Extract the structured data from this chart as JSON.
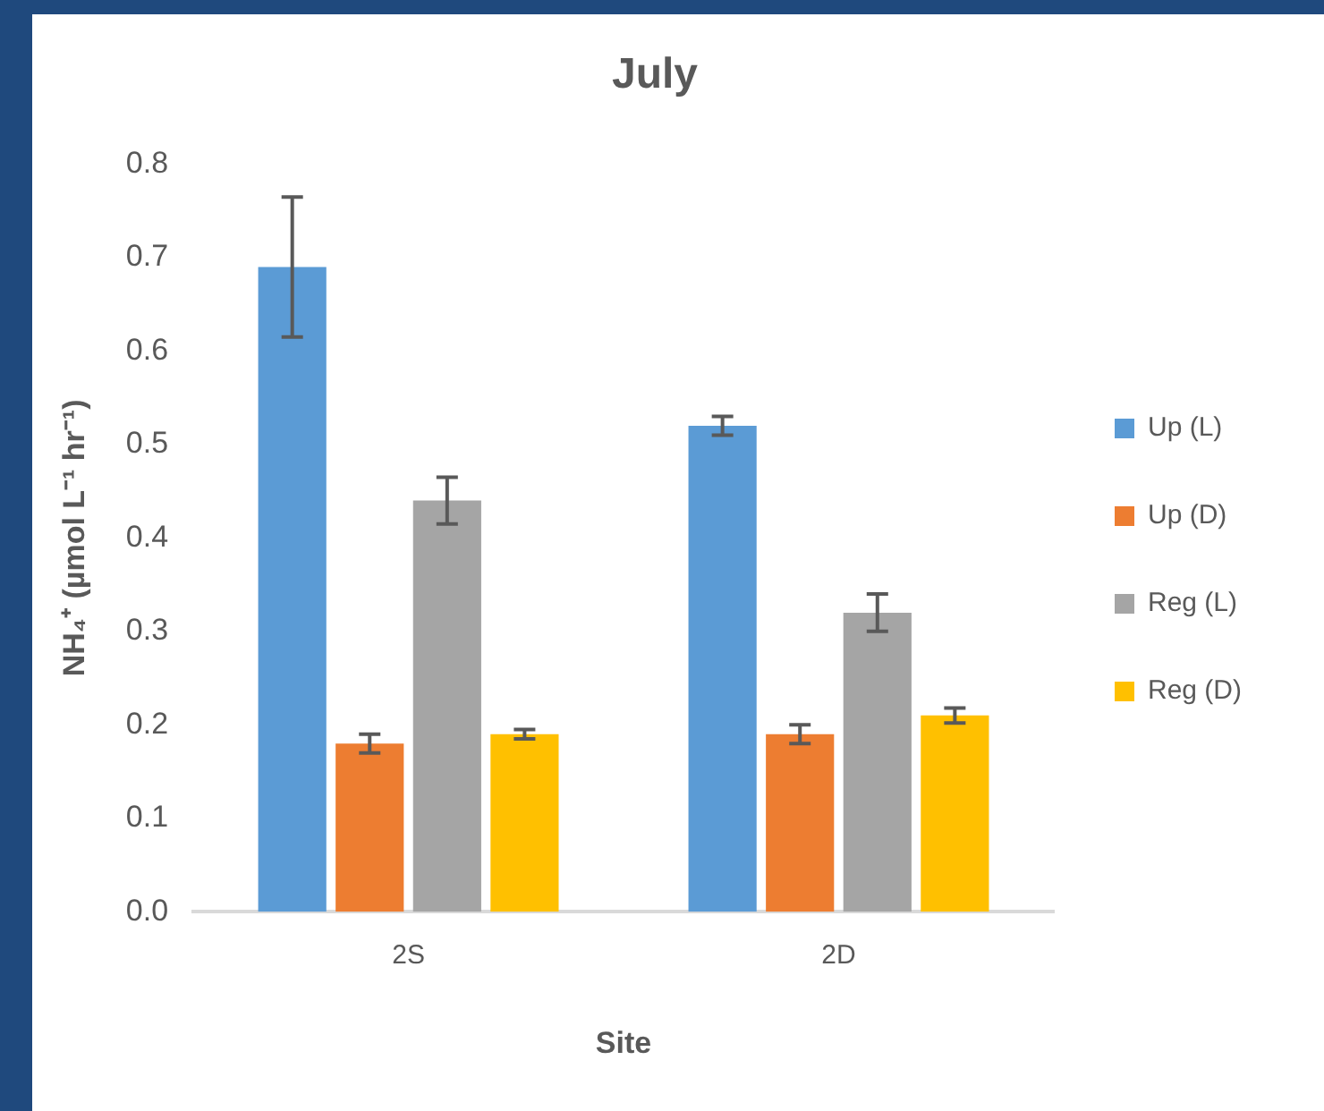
{
  "chart_data": {
    "type": "bar",
    "title": "July",
    "xlabel": "Site",
    "ylabel": "NH₄⁺ (µmol L⁻¹ hr⁻¹)",
    "categories": [
      "2S",
      "2D"
    ],
    "series": [
      {
        "name": "Up (L)",
        "color": "#5b9bd5",
        "values": [
          0.69,
          0.52
        ],
        "errors": [
          0.075,
          0.01
        ]
      },
      {
        "name": "Up (D)",
        "color": "#ed7d31",
        "values": [
          0.18,
          0.19
        ],
        "errors": [
          0.01,
          0.01
        ]
      },
      {
        "name": "Reg (L)",
        "color": "#a5a5a5",
        "values": [
          0.44,
          0.32
        ],
        "errors": [
          0.025,
          0.02
        ]
      },
      {
        "name": "Reg (D)",
        "color": "#ffc000",
        "values": [
          0.19,
          0.21
        ],
        "errors": [
          0.005,
          0.008
        ]
      }
    ],
    "ylim": [
      0,
      0.8
    ],
    "yticks": [
      {
        "value": 0,
        "label": "0.0"
      },
      0.1,
      0.2,
      0.3,
      0.4,
      0.5,
      0.6,
      0.7,
      0.8
    ],
    "grid": false,
    "legend": "right"
  }
}
